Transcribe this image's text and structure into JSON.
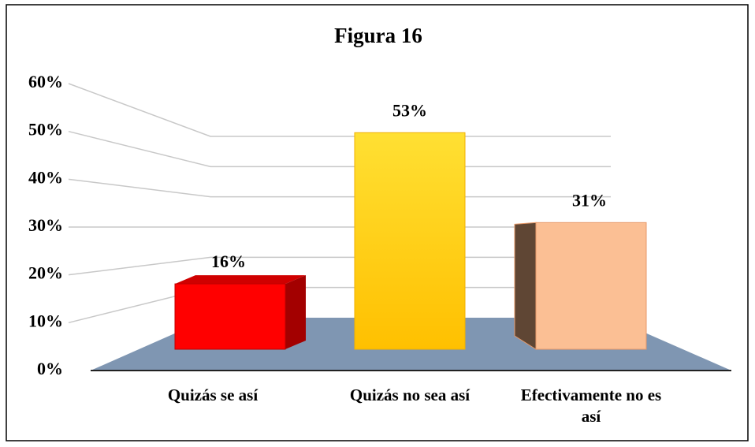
{
  "chart_data": {
    "type": "bar3d",
    "title": "Figura 16",
    "categories": [
      "Quizás se así",
      "Quizás no sea así",
      "Efectivamente no es así"
    ],
    "values": [
      16,
      53,
      31
    ],
    "value_labels": [
      "16%",
      "53%",
      "31%"
    ],
    "colors": [
      "#ff0000",
      "#ffc800",
      "#fbbf94"
    ],
    "ylim": [
      0,
      60
    ],
    "yticks": [
      {
        "value": 0,
        "label": "0%"
      },
      {
        "value": 10,
        "label": "10%"
      },
      {
        "value": 20,
        "label": "20%"
      },
      {
        "value": 30,
        "label": "30%"
      },
      {
        "value": 40,
        "label": "40%"
      },
      {
        "value": 50,
        "label": "50%"
      },
      {
        "value": 60,
        "label": "60%"
      }
    ],
    "grid": true
  }
}
